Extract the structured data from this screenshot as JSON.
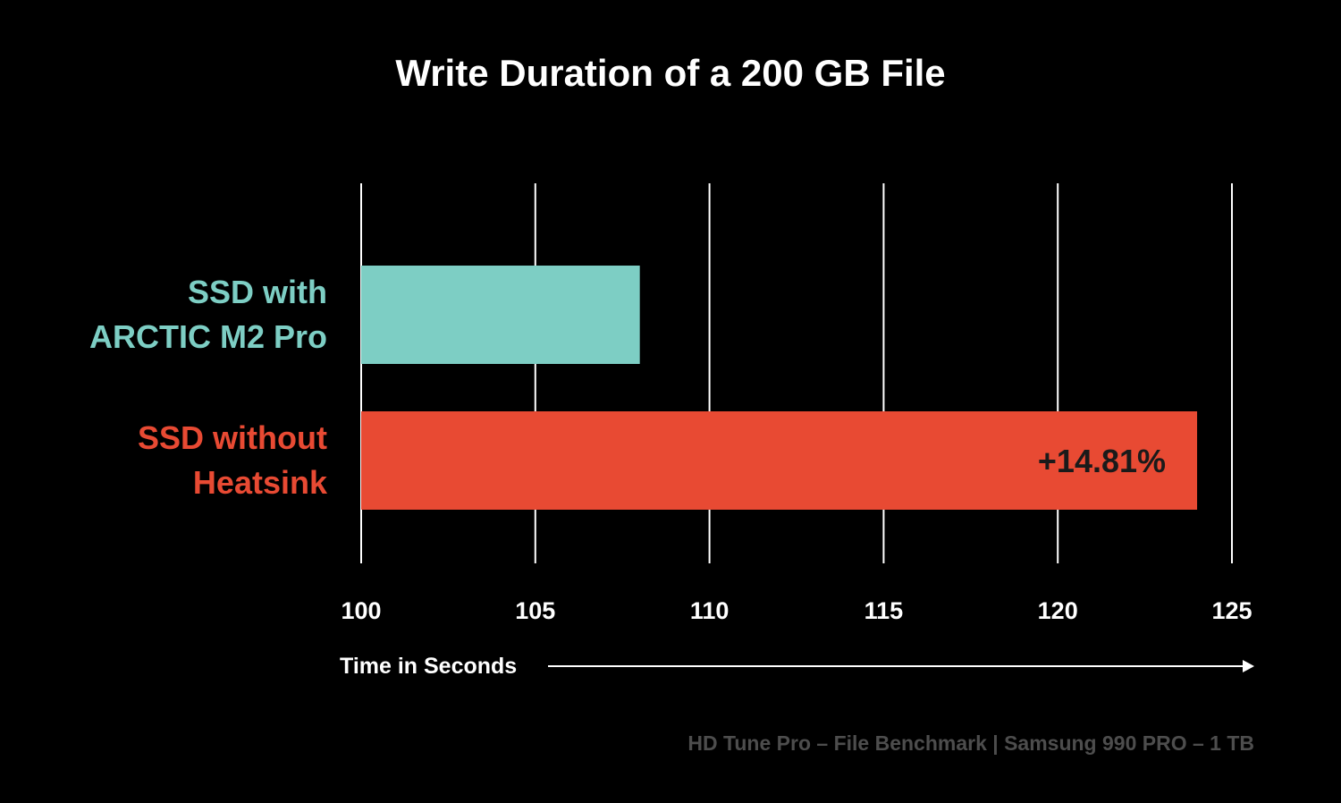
{
  "chart_data": {
    "type": "bar",
    "orientation": "horizontal",
    "title": "Write Duration of a 200 GB File",
    "xlabel": "Time in Seconds",
    "ylabel": "",
    "xlim": [
      100,
      125
    ],
    "x_ticks": [
      "100",
      "105",
      "110",
      "115",
      "120",
      "125"
    ],
    "grid": "vertical",
    "legend": "none",
    "categories": [
      {
        "label_lines": [
          "SSD with",
          "ARCTIC M2 Pro"
        ],
        "value": 108,
        "color": "#7dcec4",
        "annotation": ""
      },
      {
        "label_lines": [
          "SSD without",
          "Heatsink"
        ],
        "value": 124,
        "color": "#e84a33",
        "annotation": "+14.81%"
      }
    ],
    "footnote": "HD Tune Pro – File Benchmark | Samsung 990 PRO – 1 TB"
  }
}
